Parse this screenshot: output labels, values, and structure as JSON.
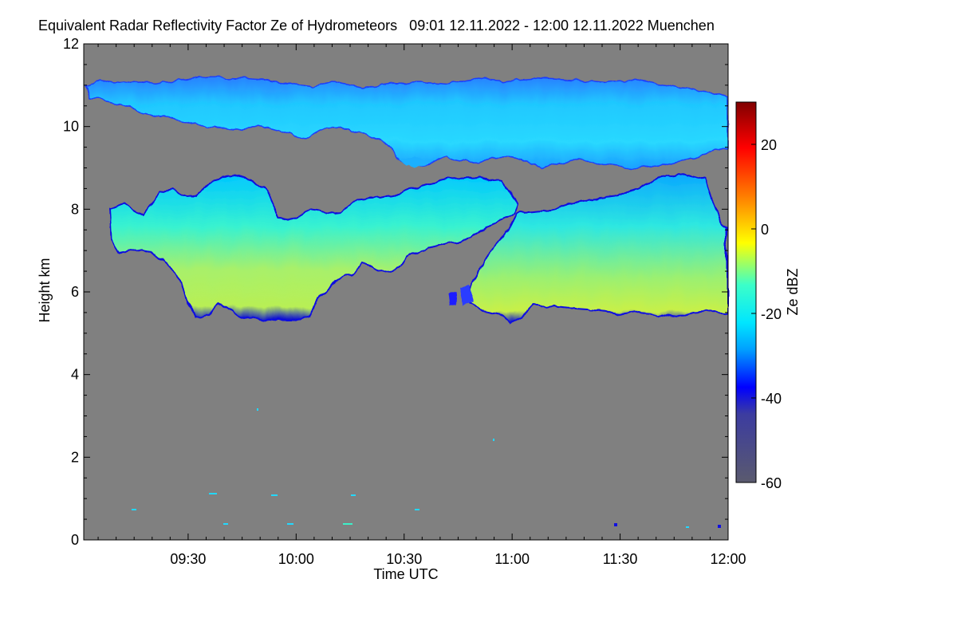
{
  "title": "Equivalent Radar Reflectivity Factor Ze of Hydrometeors   09:01 12.11.2022 - 12:00 12.11.2022 Muenchen",
  "colors": {
    "background_no_signal": "#808080",
    "colormap": [
      "#5a5a6e",
      "#0000c8",
      "#0000ff",
      "#00a0ff",
      "#00e6ff",
      "#3cffc8",
      "#c8ff3c",
      "#ffff00",
      "#ff8000",
      "#ff0000",
      "#800000"
    ]
  },
  "chart_data": {
    "type": "heatmap",
    "title": "Equivalent Radar Reflectivity Factor Ze of Hydrometeors   09:01 12.11.2022 - 12:00 12.11.2022 Muenchen",
    "xlabel": "Time UTC",
    "ylabel": "Height km",
    "xlim": [
      "09:01",
      "12:00"
    ],
    "ylim": [
      0,
      12
    ],
    "xticks": [
      "09:30",
      "10:00",
      "10:30",
      "11:00",
      "11:30",
      "12:00"
    ],
    "yticks": [
      0,
      2,
      4,
      6,
      8,
      10,
      12
    ],
    "colorbar": {
      "label": "Ze dBZ",
      "range": [
        -60,
        30
      ],
      "ticks": [
        -60,
        -40,
        -20,
        0,
        20
      ]
    },
    "layers": [
      {
        "name_hint": "upper cirrus",
        "time_start": "09:01",
        "time_end": "12:00",
        "base_km": 9.5,
        "top_km": 11.2,
        "peak_dBZ": -25
      },
      {
        "name_hint": "mid-level cloud A",
        "time_start": "09:04",
        "time_end": "10:50",
        "base_km": 5.3,
        "top_km": 8.7,
        "peak_dBZ": -8
      },
      {
        "name_hint": "mid-level cloud B",
        "time_start": "10:52",
        "time_end": "12:00",
        "base_km": 5.4,
        "top_km": 8.7,
        "peak_dBZ": -10
      }
    ]
  }
}
